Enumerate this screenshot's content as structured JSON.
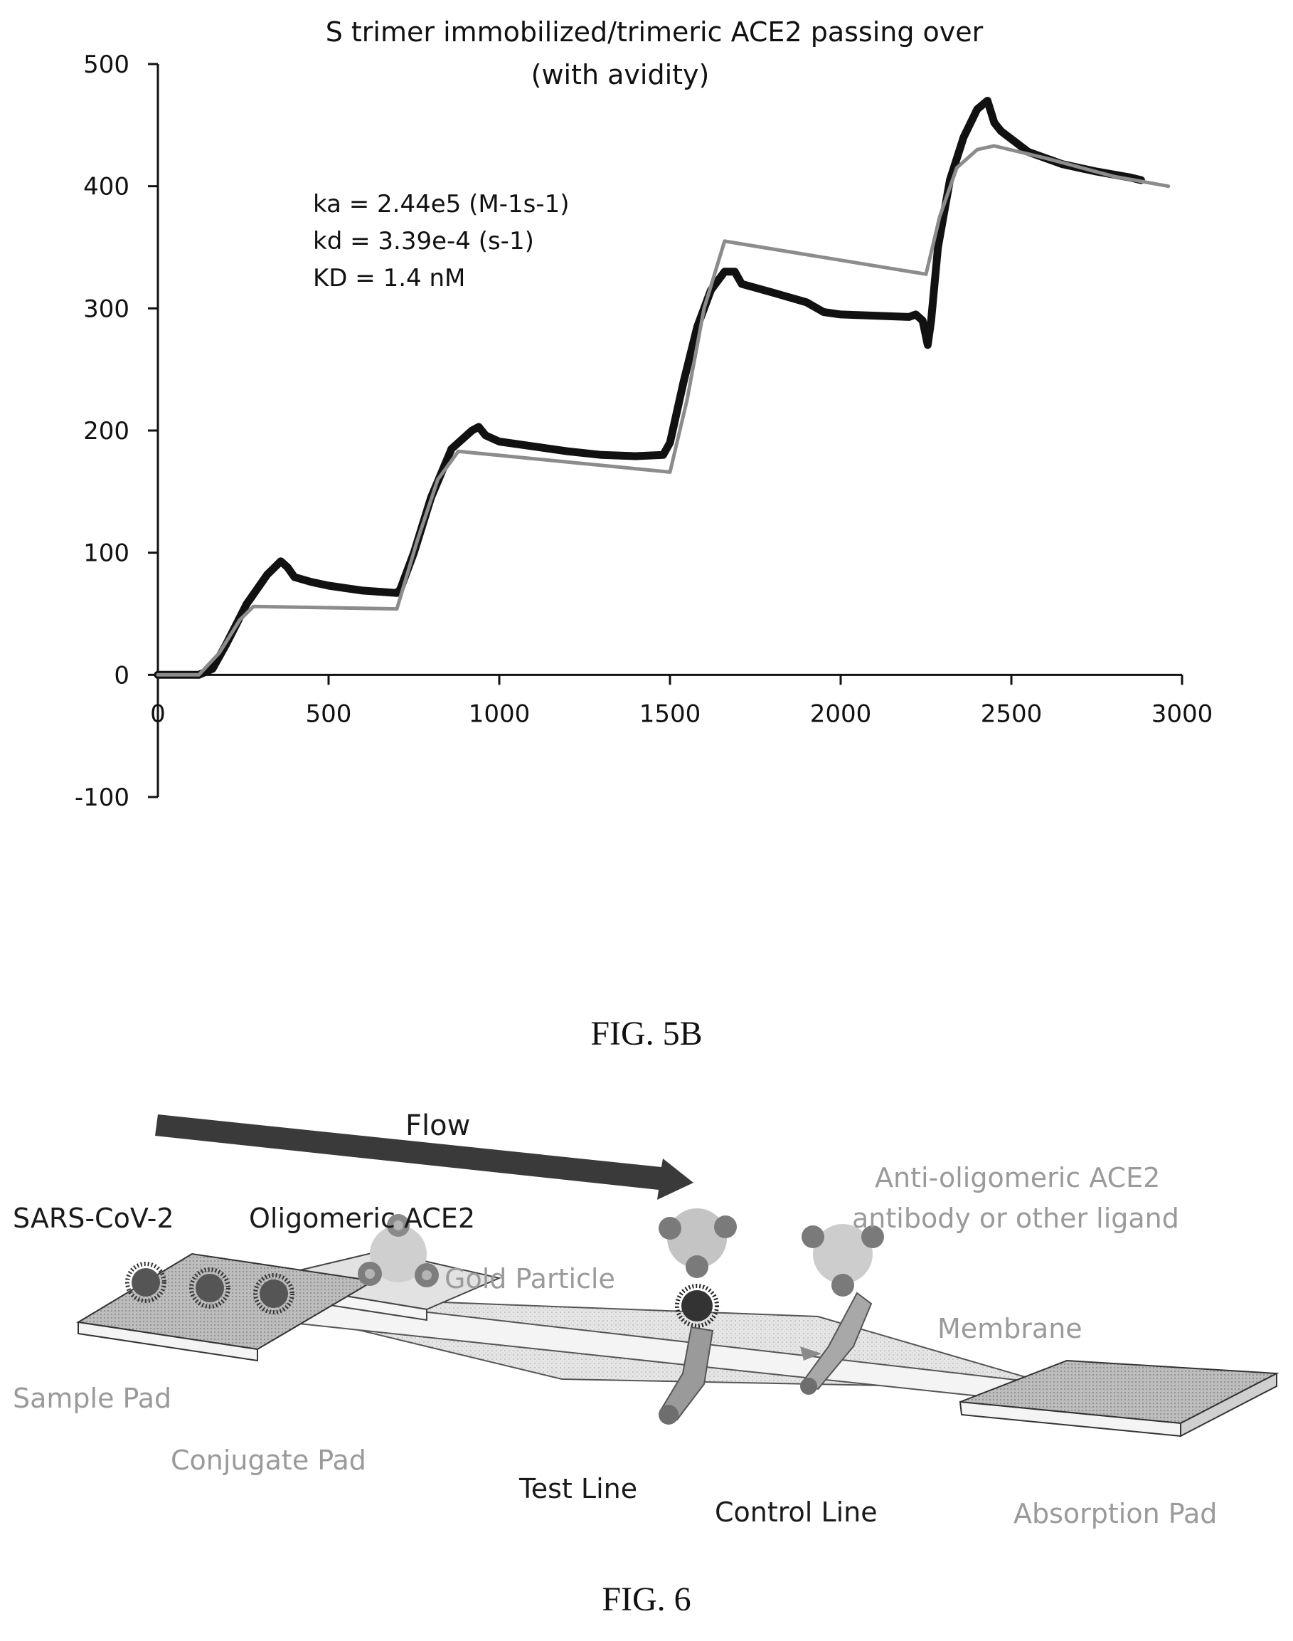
{
  "figures": {
    "fig5b_caption": "FIG. 5B",
    "fig6_caption": "FIG. 6"
  },
  "chart_data": {
    "type": "line",
    "title_line1": "S trimer immobilized/trimeric ACE2 passing over",
    "title_line2": "(with avidity)",
    "xlabel": "",
    "ylabel": "",
    "xlim": [
      0,
      3000
    ],
    "ylim": [
      -100,
      500
    ],
    "x_ticks": [
      0,
      500,
      1000,
      1500,
      2000,
      2500,
      3000
    ],
    "y_ticks": [
      -100,
      0,
      100,
      200,
      300,
      400,
      500
    ],
    "grid": false,
    "annotations": [
      "ka = 2.44e5 (M-1s-1)",
      "kd = 3.39e-4 (s-1)",
      "KD = 1.4 nM"
    ],
    "series": [
      {
        "role": "measured",
        "color": "#111111",
        "points": [
          [
            0,
            0
          ],
          [
            120,
            0
          ],
          [
            160,
            5
          ],
          [
            200,
            25
          ],
          [
            260,
            58
          ],
          [
            320,
            82
          ],
          [
            360,
            93
          ],
          [
            380,
            88
          ],
          [
            400,
            80
          ],
          [
            450,
            76
          ],
          [
            500,
            73
          ],
          [
            600,
            69
          ],
          [
            700,
            67
          ],
          [
            710,
            70
          ],
          [
            750,
            100
          ],
          [
            800,
            145
          ],
          [
            860,
            185
          ],
          [
            920,
            200
          ],
          [
            940,
            203
          ],
          [
            960,
            196
          ],
          [
            1000,
            191
          ],
          [
            1100,
            187
          ],
          [
            1200,
            183
          ],
          [
            1300,
            180
          ],
          [
            1400,
            179
          ],
          [
            1480,
            180
          ],
          [
            1500,
            190
          ],
          [
            1540,
            240
          ],
          [
            1580,
            285
          ],
          [
            1620,
            315
          ],
          [
            1660,
            330
          ],
          [
            1690,
            330
          ],
          [
            1710,
            320
          ],
          [
            1800,
            313
          ],
          [
            1900,
            305
          ],
          [
            1950,
            297
          ],
          [
            2000,
            295
          ],
          [
            2100,
            294
          ],
          [
            2200,
            293
          ],
          [
            2220,
            295
          ],
          [
            2240,
            290
          ],
          [
            2255,
            270
          ],
          [
            2265,
            290
          ],
          [
            2285,
            350
          ],
          [
            2320,
            405
          ],
          [
            2360,
            440
          ],
          [
            2400,
            463
          ],
          [
            2430,
            470
          ],
          [
            2450,
            452
          ],
          [
            2470,
            445
          ],
          [
            2550,
            428
          ],
          [
            2650,
            418
          ],
          [
            2750,
            412
          ],
          [
            2850,
            407
          ],
          [
            2880,
            405
          ]
        ]
      },
      {
        "role": "fit",
        "color": "#8c8c8c",
        "points": [
          [
            0,
            0
          ],
          [
            120,
            0
          ],
          [
            180,
            18
          ],
          [
            240,
            45
          ],
          [
            280,
            56
          ],
          [
            700,
            54
          ],
          [
            760,
            110
          ],
          [
            820,
            160
          ],
          [
            880,
            183
          ],
          [
            1500,
            166
          ],
          [
            1550,
            225
          ],
          [
            1600,
            300
          ],
          [
            1660,
            355
          ],
          [
            2250,
            328
          ],
          [
            2290,
            375
          ],
          [
            2340,
            415
          ],
          [
            2400,
            430
          ],
          [
            2450,
            433
          ],
          [
            2600,
            423
          ],
          [
            2800,
            408
          ],
          [
            2960,
            400
          ]
        ]
      }
    ]
  },
  "diagram": {
    "flow_label": "Flow",
    "labels": {
      "sars_cov_2": "SARS-CoV-2",
      "oligomeric_ace2": "Oligomeric ACE2",
      "gold_particle": "Gold Particle",
      "anti_line1": "Anti-oligomeric ACE2",
      "anti_line2": "antibody or other ligand",
      "membrane": "Membrane",
      "sample_pad": "Sample Pad",
      "conjugate_pad": "Conjugate Pad",
      "test_line": "Test Line",
      "control_line": "Control Line",
      "absorption_pad": "Absorption Pad"
    },
    "colors": {
      "label_dark": "#1a1a1a",
      "label_light": "#9a9a9a",
      "arrow": "#3a3a3a",
      "pad_fill": "#d6d6d6",
      "membrane_fill": "#ececec",
      "antibody": "#b0b0b0",
      "ace2_core": "#cfcfcf"
    }
  }
}
